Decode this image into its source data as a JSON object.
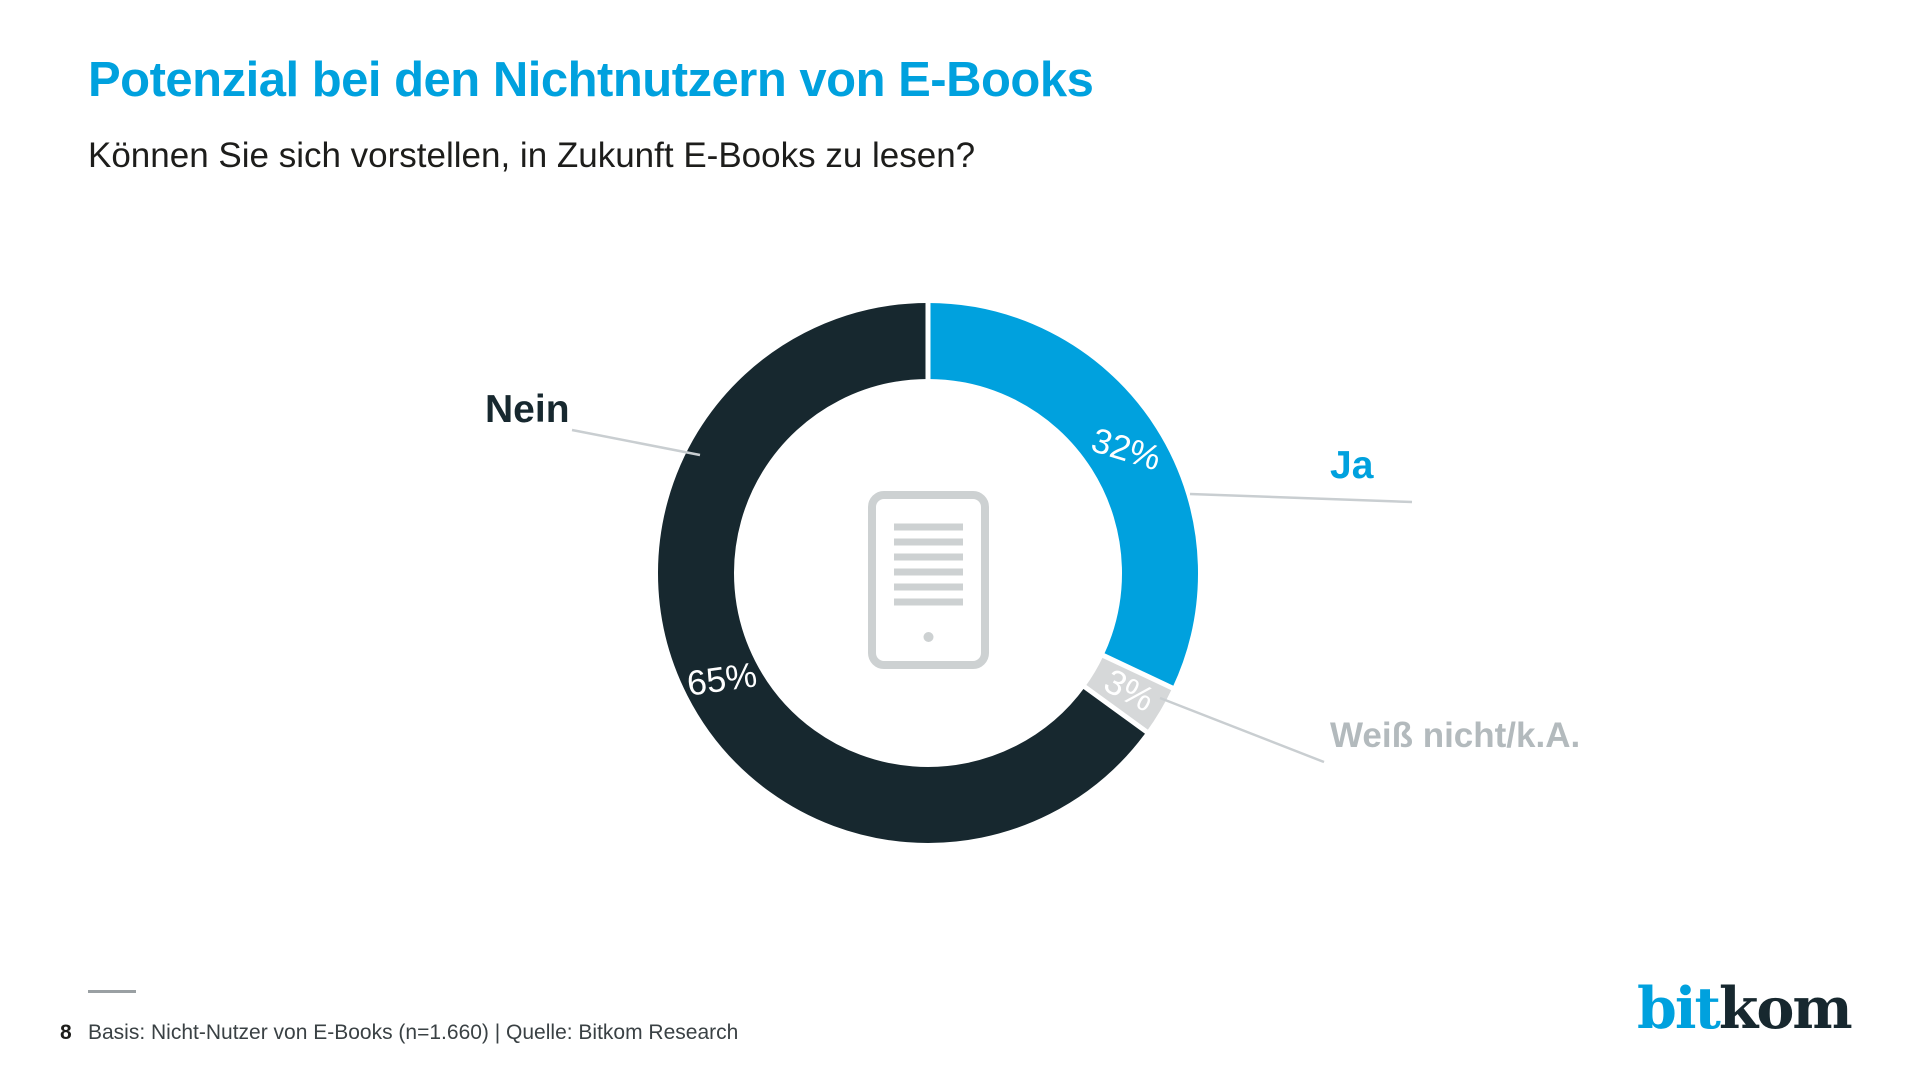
{
  "header": {
    "title": "Potenzial bei den Nichtnutzern von E-Books",
    "subtitle": "Können Sie sich vorstellen, in Zukunft E-Books zu lesen?"
  },
  "chart_data": {
    "type": "pie",
    "variant": "donut",
    "title": "Können Sie sich vorstellen, in Zukunft E-Books zu lesen?",
    "units": "%",
    "start_angle": "12 o'clock",
    "direction": "clockwise",
    "hole_radius_ratio": 0.72,
    "segments": [
      {
        "label": "Ja",
        "value": 32,
        "value_label": "32%",
        "color": "#00a1de",
        "label_color": "#00a1de"
      },
      {
        "label": "Weiß nicht/k.A.",
        "value": 3,
        "value_label": "3%",
        "color": "#d6d8d9",
        "label_color": "#b3babd"
      },
      {
        "label": "Nein",
        "value": 65,
        "value_label": "65%",
        "color": "#17282f",
        "label_color": "#17282f"
      }
    ],
    "value_label_color": "#ffffff",
    "center_icon": "ereader-icon",
    "legend": "none (direct callout labels with leader lines)"
  },
  "footer": {
    "page_number": "8",
    "source": "Basis: Nicht-Nutzer von E-Books (n=1.660) | Quelle: Bitkom Research",
    "logo": {
      "part1": "bit",
      "part2": "kom",
      "part1_color": "#00a1de",
      "part2_color": "#17282f"
    }
  }
}
